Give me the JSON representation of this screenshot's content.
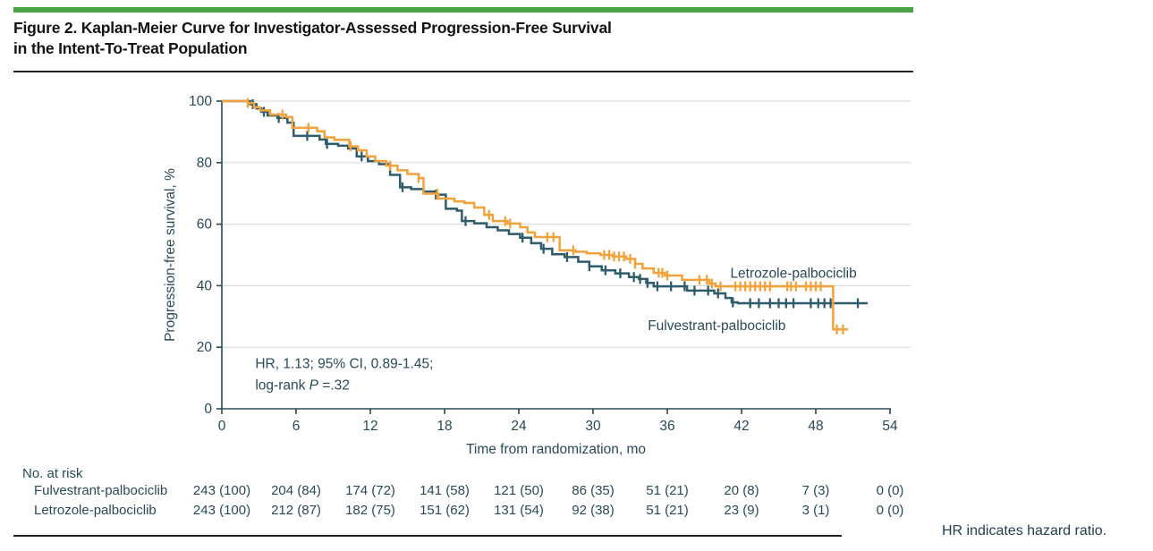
{
  "figure": {
    "title_line1": "Figure 2. Kaplan-Meier Curve for Investigator-Assessed Progression-Free Survival",
    "title_line2": "in the Intent-To-Treat Population"
  },
  "footnote": "HR indicates hazard ratio.",
  "colors": {
    "accent_green": "#4BA348",
    "letrozole": "#F1A23B",
    "fulvestrant": "#2F5C6A",
    "chart_text": "#294A57",
    "gridline": "#DADCDC",
    "axis": "#294A57"
  },
  "chart_data": {
    "type": "line",
    "subtype": "kaplan-meier-step",
    "title": "",
    "xlabel": "Time from randomization, mo",
    "ylabel": "Progression-free survival, %",
    "xlim": [
      0,
      54
    ],
    "ylim": [
      0,
      100
    ],
    "xticks": [
      0,
      6,
      12,
      18,
      24,
      30,
      36,
      42,
      48,
      54
    ],
    "yticks": [
      0,
      20,
      40,
      60,
      80,
      100
    ],
    "grid": "horizontal",
    "legend_position": "labels-on-plot",
    "annotation": {
      "line1": "HR, 1.13; 95% CI, 0.89-1.45;",
      "line2_prefix": "log-rank ",
      "line2_italic": "P",
      "line2_suffix": " =.32",
      "x": 2.7,
      "y1": 13.2,
      "y2": 6.2
    },
    "series": [
      {
        "name": "Fulvestrant-palbociclib",
        "color_key": "fulvestrant",
        "label_x": 40.0,
        "label_y": 25.6,
        "steps": [
          [
            0,
            100
          ],
          [
            2.3,
            99
          ],
          [
            2.8,
            97.6
          ],
          [
            3.2,
            96.5
          ],
          [
            3.7,
            95.3
          ],
          [
            4.5,
            94.5
          ],
          [
            5.3,
            93
          ],
          [
            5.8,
            88.7
          ],
          [
            7.9,
            87.5
          ],
          [
            8.4,
            86.1
          ],
          [
            9.4,
            85.5
          ],
          [
            10.2,
            84.6
          ],
          [
            10.9,
            82
          ],
          [
            11.8,
            80.5
          ],
          [
            12.7,
            79.5
          ],
          [
            13.6,
            76
          ],
          [
            14.4,
            72
          ],
          [
            15.3,
            71.4
          ],
          [
            16.3,
            70.6
          ],
          [
            17.3,
            69.6
          ],
          [
            18.1,
            65
          ],
          [
            19.0,
            64.4
          ],
          [
            19.4,
            61
          ],
          [
            20.4,
            60.3
          ],
          [
            21.4,
            59
          ],
          [
            22.3,
            58
          ],
          [
            23.2,
            56.8
          ],
          [
            24.1,
            55.6
          ],
          [
            25.0,
            53.8
          ],
          [
            25.8,
            52
          ],
          [
            26.7,
            50.2
          ],
          [
            27.7,
            49.3
          ],
          [
            28.8,
            47.8
          ],
          [
            29.7,
            46.3
          ],
          [
            30.7,
            45
          ],
          [
            31.8,
            44
          ],
          [
            32.9,
            42.8
          ],
          [
            33.7,
            42.2
          ],
          [
            34.3,
            40.9
          ],
          [
            34.9,
            39.8
          ],
          [
            37.6,
            38.4
          ],
          [
            39.8,
            37.5
          ],
          [
            40.7,
            36
          ],
          [
            41.2,
            34.6
          ],
          [
            41.7,
            34.3
          ],
          [
            52.2,
            34.3
          ]
        ],
        "censor_times": [
          2.5,
          3.4,
          4.6,
          6.9,
          8.5,
          11.3,
          14.6,
          17.3,
          19.7,
          24.3,
          26.0,
          27.9,
          29.7,
          31.0,
          32.2,
          33.3,
          33.8,
          34.4,
          35.2,
          36.3,
          37.4,
          38.2,
          39.3,
          40.1,
          41.3,
          42.7,
          43.4,
          44.3,
          45.0,
          45.6,
          46.2,
          47.6,
          48.2,
          48.7,
          49.2,
          51.4
        ]
      },
      {
        "name": "Letrozole-palbociclib",
        "color_key": "letrozole",
        "label_x": 46.2,
        "label_y": 42.6,
        "steps": [
          [
            0,
            100
          ],
          [
            2.1,
            99.4
          ],
          [
            2.6,
            98
          ],
          [
            3.1,
            97
          ],
          [
            3.9,
            95.6
          ],
          [
            5.2,
            94.8
          ],
          [
            5.7,
            91.3
          ],
          [
            7.7,
            90.2
          ],
          [
            8.3,
            88.2
          ],
          [
            9.1,
            87.4
          ],
          [
            10.3,
            85.3
          ],
          [
            11.0,
            84
          ],
          [
            11.7,
            82
          ],
          [
            12.4,
            80.5
          ],
          [
            13.3,
            79
          ],
          [
            14.2,
            77.5
          ],
          [
            15.0,
            76.3
          ],
          [
            15.9,
            75
          ],
          [
            16.3,
            69.9
          ],
          [
            17.5,
            68.3
          ],
          [
            18.8,
            67.4
          ],
          [
            19.6,
            66.9
          ],
          [
            20.4,
            65.4
          ],
          [
            21.2,
            63
          ],
          [
            21.9,
            61
          ],
          [
            23.1,
            60.2
          ],
          [
            24.1,
            59
          ],
          [
            24.7,
            57.3
          ],
          [
            25.3,
            55.8
          ],
          [
            27.3,
            51.5
          ],
          [
            28.6,
            51
          ],
          [
            29.5,
            50.5
          ],
          [
            30.6,
            50
          ],
          [
            31.6,
            49.5
          ],
          [
            32.7,
            48.7
          ],
          [
            33.4,
            47.1
          ],
          [
            34.0,
            45.6
          ],
          [
            34.9,
            44.2
          ],
          [
            35.8,
            43.3
          ],
          [
            37.2,
            41.9
          ],
          [
            39.4,
            40.7
          ],
          [
            39.9,
            39.8
          ],
          [
            49.3,
            39.8
          ],
          [
            49.4,
            25.8
          ],
          [
            50.6,
            25.8
          ]
        ],
        "censor_times": [
          2.1,
          4.9,
          7.0,
          10.4,
          13.6,
          15.9,
          17.4,
          21.6,
          22.9,
          23.3,
          26.3,
          26.8,
          28.4,
          30.9,
          31.3,
          31.7,
          32.1,
          32.5,
          33.0,
          33.4,
          35.3,
          35.6,
          36.0,
          38.6,
          39.2,
          39.6,
          40.3,
          41.5,
          41.9,
          42.3,
          42.7,
          43.1,
          43.5,
          43.9,
          44.3,
          45.7,
          46.0,
          46.4,
          47.2,
          47.6,
          48.0,
          48.4,
          49.7,
          50.2
        ]
      }
    ]
  },
  "risk_table": {
    "title": "No. at risk",
    "rows": [
      {
        "label": "Fulvestrant-palbociclib",
        "values": [
          "243 (100)",
          "204 (84)",
          "174 (72)",
          "141 (58)",
          "121 (50)",
          "86 (35)",
          "51 (21)",
          "20 (8)",
          "7 (3)",
          "0 (0)"
        ]
      },
      {
        "label": "Letrozole-palbociclib",
        "values": [
          "243 (100)",
          "212 (87)",
          "182 (75)",
          "151 (62)",
          "131 (54)",
          "92 (38)",
          "51 (21)",
          "23 (9)",
          "3 (1)",
          "0 (0)"
        ]
      }
    ]
  }
}
